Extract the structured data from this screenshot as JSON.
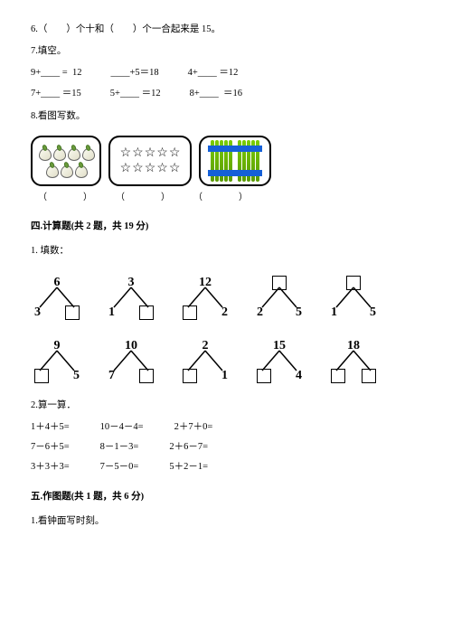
{
  "q6": "6.（　　）个十和（　　）个一合起来是 15。",
  "q7": "7.填空。",
  "eq": {
    "r1": [
      "9+____ =  12",
      "____+5＝18",
      "4+____ ＝12"
    ],
    "r2": [
      "7+____ ＝15",
      "5+____ ＝12",
      "8+____  ＝16"
    ]
  },
  "q8": "8.看图写数。",
  "parens": [
    "（　　　　）",
    "（　　　　）",
    "（　　　　）"
  ],
  "s4": "四.计算题(共 2 题，共 19 分)",
  "s4q1": "1. 填数：",
  "bonds1": [
    {
      "t": "6",
      "l": "3",
      "r": "□"
    },
    {
      "t": "3",
      "l": "1",
      "r": "□"
    },
    {
      "t": "12",
      "l": "□",
      "r": "2"
    },
    {
      "t": "□",
      "l": "2",
      "r": "5"
    },
    {
      "t": "□",
      "l": "1",
      "r": "5"
    }
  ],
  "bonds2": [
    {
      "t": "9",
      "l": "□",
      "r": "5"
    },
    {
      "t": "10",
      "l": "7",
      "r": "□"
    },
    {
      "t": "2",
      "l": "□",
      "r": "1"
    },
    {
      "t": "15",
      "l": "□",
      "r": "4"
    },
    {
      "t": "18",
      "l": "□",
      "r": "□"
    }
  ],
  "s4q2": "2.算一算．",
  "calc": [
    [
      "1＋4＋5=",
      "10－4－4=",
      "2＋7＋0="
    ],
    [
      "7－6＋5=",
      "8－1－3=",
      "2＋6－7="
    ],
    [
      "3＋3＋3=",
      "7－5－0=",
      "5＋2－1="
    ]
  ],
  "s5": "五.作图题(共 1 题，共 6 分)",
  "s5q1": "1.看钟面写时刻。",
  "starchar": "☆",
  "colors": {
    "stick": "#7acc00",
    "band": "#1560d8"
  }
}
